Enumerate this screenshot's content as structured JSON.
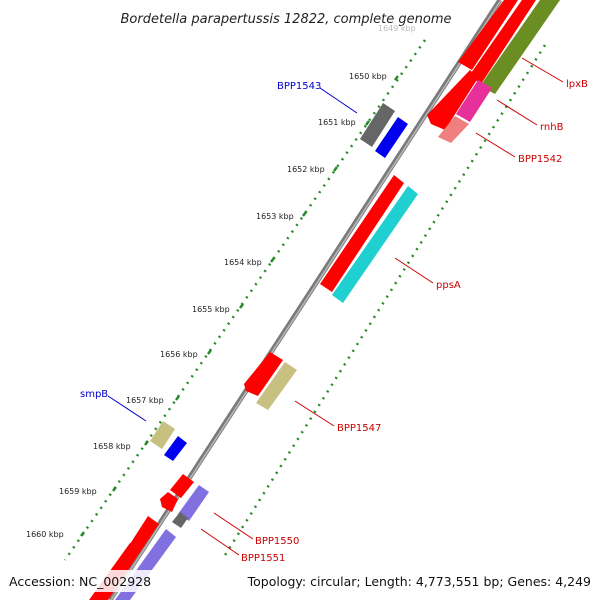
{
  "title": "Bordetella parapertussis 12822, complete genome",
  "footer": {
    "accession": "Accession: NC_002928",
    "info": "Topology: circular; Length: 4,773,551 bp; Genes: 4,249"
  },
  "kbp_labels": [
    "1649 kbp",
    "1650 kbp",
    "1651 kbp",
    "1652 kbp",
    "1653 kbp",
    "1654 kbp",
    "1655 kbp",
    "1656 kbp",
    "1657 kbp",
    "1658 kbp",
    "1659 kbp",
    "1660 kbp"
  ],
  "gene_labels": [
    {
      "text": "BPP1543",
      "color": "#0000cc"
    },
    {
      "text": "smpB",
      "color": "#0000cc"
    },
    {
      "text": "lpxB",
      "color": "#cc0000"
    },
    {
      "text": "rnhB",
      "color": "#cc0000"
    },
    {
      "text": "BPP1542",
      "color": "#cc0000"
    },
    {
      "text": "ppsA",
      "color": "#cc0000"
    },
    {
      "text": "BPP1547",
      "color": "#cc0000"
    },
    {
      "text": "BPP1550",
      "color": "#cc0000"
    },
    {
      "text": "BPP1551",
      "color": "#cc0000"
    }
  ],
  "colors": {
    "cds": "#ff0000",
    "gene_blue": "#0000ee",
    "gray": "#666666",
    "olive": "#6b8e23",
    "magenta": "#e8309a",
    "pink": "#f08080",
    "cyan": "#20d0d0",
    "khaki": "#c8c080",
    "lavender": "#8070e0",
    "backbone": "#888888",
    "ticks": "#2a8a2a"
  }
}
